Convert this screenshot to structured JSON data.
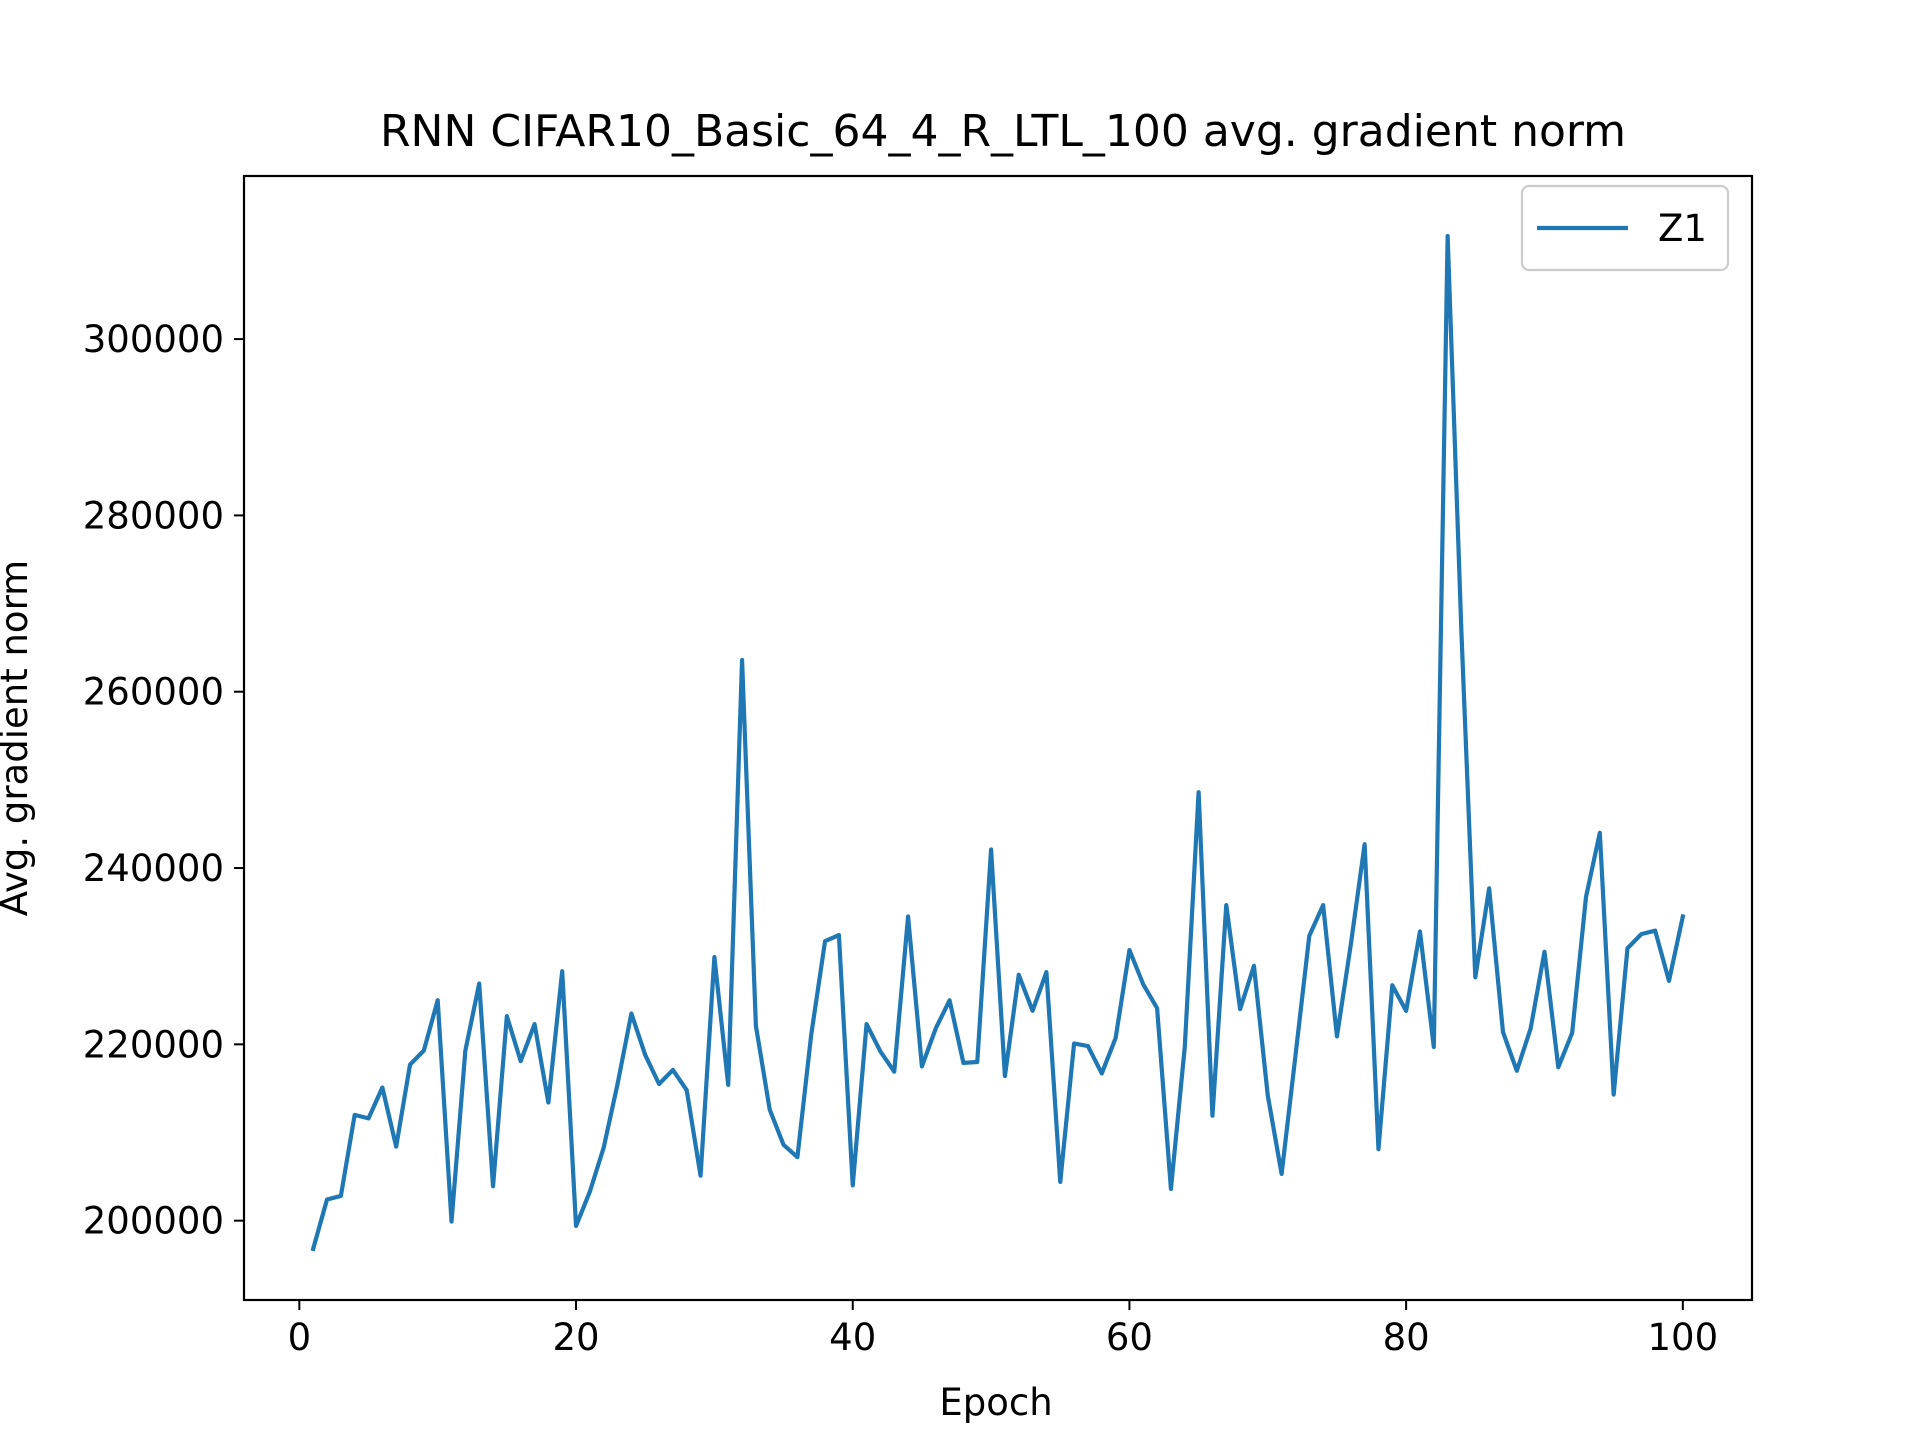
{
  "chart_data": {
    "type": "line",
    "title": "RNN CIFAR10_Basic_64_4_R_LTL_100 avg. gradient norm",
    "xlabel": "Epoch",
    "ylabel": "Avg. gradient norm",
    "xlim": [
      -4,
      105
    ],
    "ylim": [
      191000,
      318500
    ],
    "xticks": [
      0,
      20,
      40,
      60,
      80,
      100
    ],
    "yticks": [
      200000,
      220000,
      240000,
      260000,
      280000,
      300000
    ],
    "xtick_labels": [
      "0",
      "20",
      "40",
      "60",
      "80",
      "100"
    ],
    "ytick_labels": [
      "200000",
      "220000",
      "240000",
      "260000",
      "280000",
      "300000"
    ],
    "grid": false,
    "legend_position": "upper right",
    "series": [
      {
        "name": "Z1",
        "color": "#1f77b4",
        "x": [
          1,
          2,
          3,
          4,
          5,
          6,
          7,
          8,
          9,
          10,
          11,
          12,
          13,
          14,
          15,
          16,
          17,
          18,
          19,
          20,
          21,
          22,
          23,
          24,
          25,
          26,
          27,
          28,
          29,
          30,
          31,
          32,
          33,
          34,
          35,
          36,
          37,
          38,
          39,
          40,
          41,
          42,
          43,
          44,
          45,
          46,
          47,
          48,
          49,
          50,
          51,
          52,
          53,
          54,
          55,
          56,
          57,
          58,
          59,
          60,
          61,
          62,
          63,
          64,
          65,
          66,
          67,
          68,
          69,
          70,
          71,
          72,
          73,
          74,
          75,
          76,
          77,
          78,
          79,
          80,
          81,
          82,
          83,
          84,
          85,
          86,
          87,
          88,
          89,
          90,
          91,
          92,
          93,
          94,
          95,
          96,
          97,
          98,
          99,
          100
        ],
        "y": [
          196800,
          202400,
          202800,
          212000,
          211600,
          215100,
          208400,
          217700,
          219300,
          225000,
          199900,
          219300,
          226900,
          203900,
          223200,
          218100,
          222300,
          213400,
          228300,
          199400,
          203300,
          208300,
          215500,
          223500,
          218800,
          215500,
          217100,
          214800,
          205100,
          229900,
          215400,
          263600,
          222100,
          212600,
          208600,
          207200,
          221100,
          231700,
          232400,
          204000,
          222300,
          219200,
          216900,
          234500,
          217500,
          221800,
          225000,
          217900,
          218000,
          242100,
          216400,
          227900,
          223800,
          228200,
          204400,
          220100,
          219800,
          216700,
          220700,
          230700,
          226800,
          224100,
          203600,
          219700,
          248600,
          211900,
          235800,
          224000,
          228900,
          214200,
          205300,
          218700,
          232300,
          235800,
          220900,
          231300,
          242700,
          208100,
          226700,
          223800,
          232800,
          219700,
          311700,
          266600,
          227600,
          237700,
          221400,
          217000,
          221800,
          230500,
          217400,
          221300,
          236700,
          244000,
          214300,
          230900,
          232500,
          232900,
          227200,
          234500
        ]
      }
    ]
  }
}
